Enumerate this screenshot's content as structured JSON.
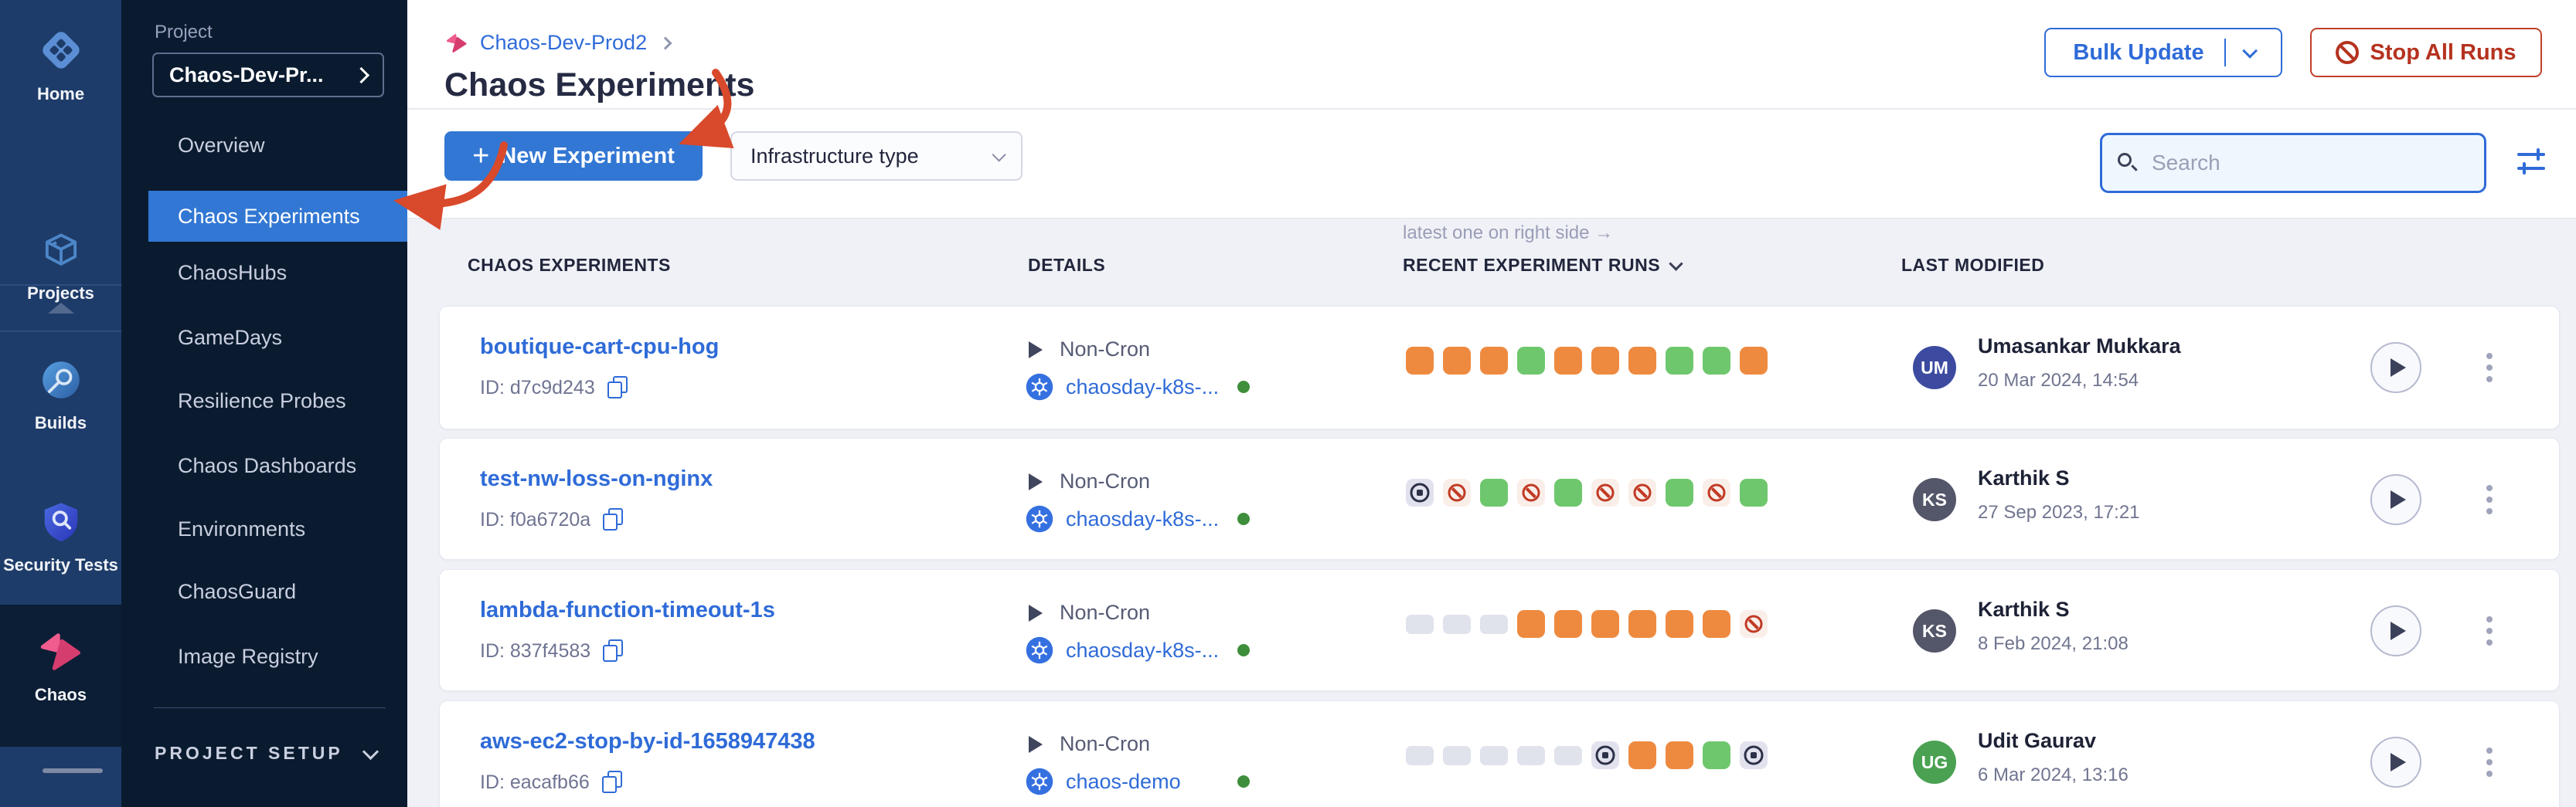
{
  "colors": {
    "accent": "#3277d3",
    "link": "#2f6bd8",
    "run_orange": "#ee8a40",
    "run_green": "#6fc76d",
    "run_empty": "#e0e2ec",
    "ban_red": "#c13a24",
    "ban_bg": "#faeee9",
    "stop_bg": "#e1e2ee",
    "annotation_red": "#d9492b",
    "nav_selected": "#3277d3"
  },
  "rail": {
    "items": [
      {
        "label": "Home"
      },
      {
        "label": "Projects"
      },
      {
        "label": "Builds"
      },
      {
        "label": "Security Tests"
      },
      {
        "label": "Chaos"
      }
    ]
  },
  "project_nav": {
    "section_label": "Project",
    "selector_value": "Chaos-Dev-Pr...",
    "items": [
      {
        "label": "Overview",
        "active": false
      },
      {
        "label": "Chaos Experiments",
        "active": true
      },
      {
        "label": "ChaosHubs",
        "active": false
      },
      {
        "label": "GameDays",
        "active": false
      },
      {
        "label": "Resilience Probes",
        "active": false
      },
      {
        "label": "Chaos Dashboards",
        "active": false
      },
      {
        "label": "Environments",
        "active": false
      },
      {
        "label": "ChaosGuard",
        "active": false
      },
      {
        "label": "Image Registry",
        "active": false
      }
    ],
    "footer_label": "PROJECT SETUP"
  },
  "header": {
    "breadcrumb_project": "Chaos-Dev-Prod2",
    "title": "Chaos Experiments",
    "bulk_update_label": "Bulk Update",
    "stop_all_label": "Stop All Runs"
  },
  "toolbar": {
    "new_experiment_label": "New Experiment",
    "infrastructure_filter_label": "Infrastructure type",
    "search_placeholder": "Search"
  },
  "table": {
    "runs_note": "latest one on right side →",
    "columns": {
      "experiments": "CHAOS EXPERIMENTS",
      "details": "DETAILS",
      "recent_runs": "RECENT EXPERIMENT RUNS",
      "last_modified": "LAST MODIFIED"
    },
    "rows": [
      {
        "name": "boutique-cart-cpu-hog",
        "id_label": "ID: d7c9d243",
        "schedule": "Non-Cron",
        "infra": "chaosday-k8s-...",
        "runs": [
          "orange",
          "orange",
          "orange",
          "green",
          "orange",
          "orange",
          "orange",
          "green",
          "green",
          "orange"
        ],
        "user": "Umasankar Mukkara",
        "initials": "UM",
        "avatar_color": "#3c4b9f",
        "date": "20 Mar 2024, 14:54"
      },
      {
        "name": "test-nw-loss-on-nginx",
        "id_label": "ID: f0a6720a",
        "schedule": "Non-Cron",
        "infra": "chaosday-k8s-...",
        "runs": [
          "stop",
          "ban",
          "green",
          "ban",
          "green",
          "ban",
          "ban",
          "green",
          "ban",
          "green"
        ],
        "user": "Karthik S",
        "initials": "KS",
        "avatar_color": "#545669",
        "date": "27 Sep 2023, 17:21"
      },
      {
        "name": "lambda-function-timeout-1s",
        "id_label": "ID: 837f4583",
        "schedule": "Non-Cron",
        "infra": "chaosday-k8s-...",
        "runs": [
          "empty",
          "empty",
          "empty",
          "orange",
          "orange",
          "orange",
          "orange",
          "orange",
          "orange",
          "ban"
        ],
        "user": "Karthik S",
        "initials": "KS",
        "avatar_color": "#545669",
        "date": "8 Feb 2024, 21:08"
      },
      {
        "name": "aws-ec2-stop-by-id-1658947438",
        "id_label": "ID: eacafb66",
        "schedule": "Non-Cron",
        "infra": "chaos-demo",
        "runs": [
          "empty",
          "empty",
          "empty",
          "empty",
          "empty",
          "stop",
          "orange",
          "orange",
          "green",
          "stop"
        ],
        "user": "Udit Gaurav",
        "initials": "UG",
        "avatar_color": "#4aa152",
        "date": "6 Mar 2024, 13:16"
      }
    ]
  }
}
